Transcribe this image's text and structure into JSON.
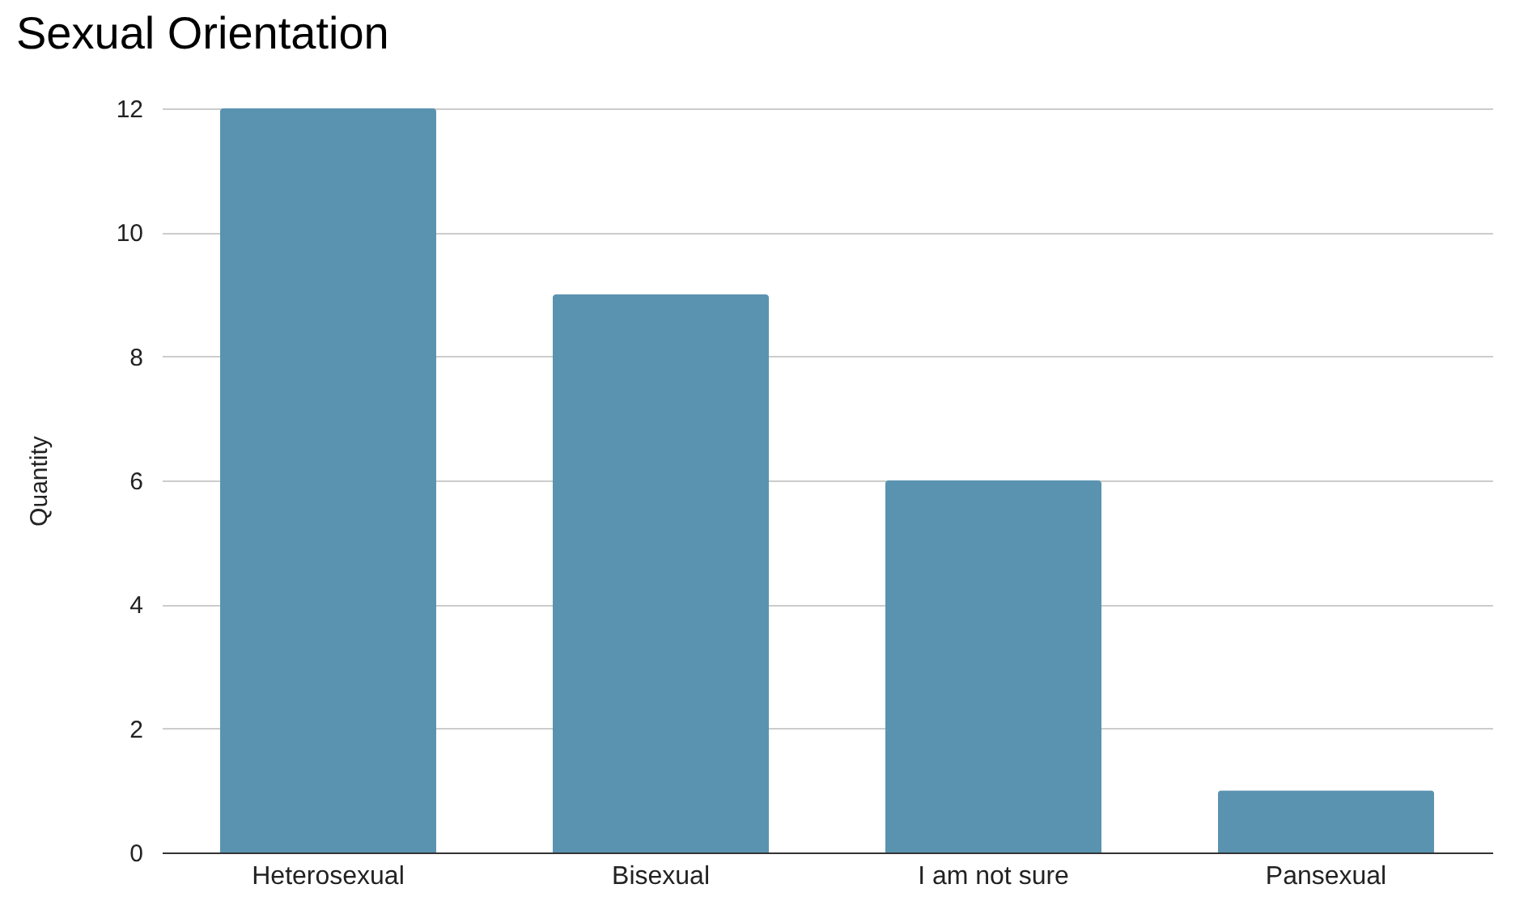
{
  "chart_data": {
    "type": "bar",
    "title": "Sexual Orientation",
    "ylabel": "Quantity",
    "categories": [
      "Heterosexual",
      "Bisexual",
      "I am not sure",
      "Pansexual"
    ],
    "values": [
      12,
      9,
      6,
      1
    ],
    "color": "#5a93b0",
    "ylim": [
      0,
      12
    ],
    "yticks": [
      0,
      2,
      4,
      6,
      8,
      10,
      12
    ],
    "grid": "y"
  }
}
